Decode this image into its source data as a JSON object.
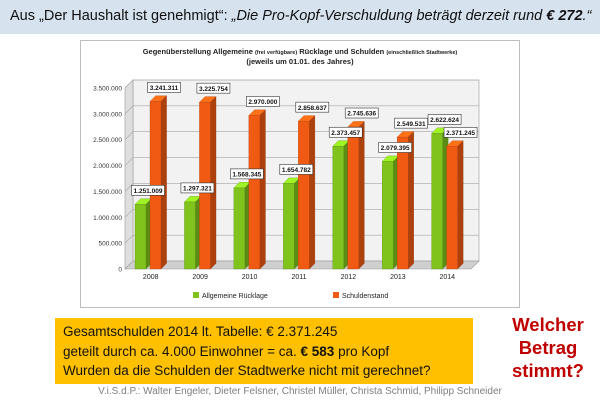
{
  "header": {
    "prefix": "Aus „Der Haushalt ist genehmigt“: ",
    "quote": "„Die Pro-Kopf-Verschuldung beträgt derzeit rund ",
    "amount": "€ 272",
    "end": ".“"
  },
  "chart_data": {
    "type": "bar",
    "title_line1_main": "Gegenüberstellung Allgemeine ",
    "title_line1_small": "(frei verfügbare)",
    "title_line1_main2": " Rücklage und Schulden ",
    "title_line1_small2": "(einschließlich Stadtwerke)",
    "title_line2": "(jeweils um 01.01. des Jahres)",
    "categories": [
      "2008",
      "2009",
      "2010",
      "2011",
      "2012",
      "2013",
      "2014"
    ],
    "series": [
      {
        "name": "Allgemeine Rücklage",
        "color": "#7fc31c",
        "values": [
          1251009,
          1297321,
          1568345,
          1654782,
          2373457,
          2079395,
          2622624
        ],
        "labels": [
          "1.251.009",
          "1.297.321",
          "1.568.345",
          "1.654.782",
          "2.373.457",
          "2.079.395",
          "2.622.624"
        ]
      },
      {
        "name": "Schuldenstand",
        "color": "#f05a12",
        "values": [
          3241311,
          3225754,
          2970000,
          2858637,
          2745636,
          2549531,
          2371245
        ],
        "labels": [
          "3.241.311",
          "3.225.754",
          "2.970.000",
          "2.858.637",
          "2.745.636",
          "2.549.531",
          "2.371.245"
        ]
      }
    ],
    "ylim": [
      0,
      3500000
    ],
    "y_ticks": [
      {
        "v": 0,
        "label": "0"
      },
      {
        "v": 500000,
        "label": "500.000"
      },
      {
        "v": 1000000,
        "label": "1.000.000"
      },
      {
        "v": 1500000,
        "label": "1.500.000"
      },
      {
        "v": 2000000,
        "label": "2.000.000"
      },
      {
        "v": 2500000,
        "label": "2.500.000"
      },
      {
        "v": 3000000,
        "label": "3.000.000"
      },
      {
        "v": 3500000,
        "label": "3.500.000"
      }
    ],
    "grid": true,
    "legend_position": "bottom"
  },
  "calc": {
    "line1": "Gesamtschulden 2014 lt. Tabelle: € 2.371.245",
    "line2_pre": "geteilt durch ca. 4.000 Einwohner = ca. ",
    "line2_bold": "€ 583",
    "line2_post": " pro Kopf",
    "line3": "Wurden da die Schulden der Stadtwerke nicht mit gerechnet?"
  },
  "question": {
    "line1": "Welcher",
    "line2": "Betrag",
    "line3": "stimmt?"
  },
  "footer": {
    "text": "V.i.S.d.P.: Walter Engeler, Dieter Felsner, Christel Müller, Christa Schmid, Philipp Schneider"
  },
  "colors": {
    "reserve": "#7fc31c",
    "debt": "#f05a12",
    "header_bg": "#d7e2ef",
    "calc_bg": "#ffc000",
    "question": "#c00000"
  }
}
